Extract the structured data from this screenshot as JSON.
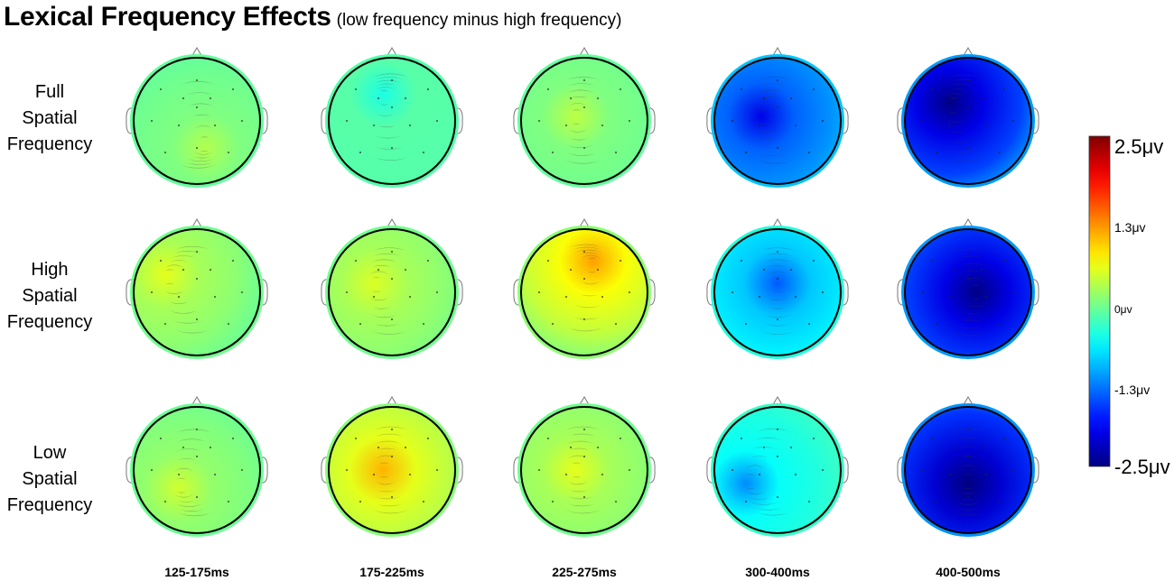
{
  "title": "Lexical Frequency Effects",
  "subtitle": "(low frequency minus high frequency)",
  "rows": [
    {
      "lines": [
        "Full",
        "Spatial",
        "Frequency"
      ]
    },
    {
      "lines": [
        "High",
        "Spatial",
        "Frequency"
      ]
    },
    {
      "lines": [
        "Low",
        "Spatial",
        "Frequency"
      ]
    }
  ],
  "columns": [
    "125-175ms",
    "175-225ms",
    "225-275ms",
    "300-400ms",
    "400-500ms"
  ],
  "colorbar": {
    "max_label": "2.5μv",
    "high_label": "1.3μv",
    "zero_label": "0μv",
    "low_label": "-1.3μv",
    "min_label": "-2.5μv",
    "range": [
      -2.5,
      2.5
    ],
    "colormap": "jet"
  },
  "chart_data": {
    "type": "heatmap",
    "description_of_cells": "scalp topographic maps of voltage difference",
    "row_categories": [
      "Full Spatial Frequency",
      "High Spatial Frequency",
      "Low Spatial Frequency"
    ],
    "column_categories": [
      "125-175ms",
      "175-225ms",
      "225-275ms",
      "300-400ms",
      "400-500ms"
    ],
    "mean_values_uv": [
      [
        0.0,
        -0.2,
        0.0,
        -1.4,
        -2.0
      ],
      [
        0.2,
        0.2,
        0.6,
        -0.9,
        -2.0
      ],
      [
        0.1,
        0.5,
        0.2,
        -0.6,
        -2.1
      ]
    ],
    "range_uv": [
      -2.5,
      2.5
    ]
  }
}
